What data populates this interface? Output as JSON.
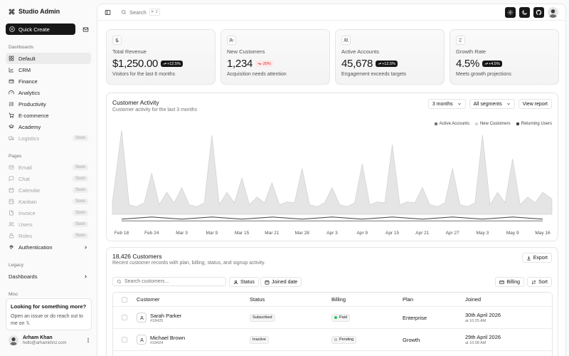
{
  "brand": {
    "name": "Studio Admin"
  },
  "sidebar": {
    "quick_create": "Quick Create",
    "dashboards_label": "Dashboards",
    "dashboards": [
      {
        "label": "Default",
        "icon": "layout-grid-icon",
        "active": true
      },
      {
        "label": "CRM",
        "icon": "chart-icon"
      },
      {
        "label": "Finance",
        "icon": "wallet-icon"
      },
      {
        "label": "Analytics",
        "icon": "gauge-icon"
      },
      {
        "label": "Productivity",
        "icon": "list-check-icon"
      },
      {
        "label": "E-commerce",
        "icon": "cart-icon"
      },
      {
        "label": "Academy",
        "icon": "graduation-cap-icon"
      },
      {
        "label": "Logistics",
        "icon": "truck-icon",
        "badge": "Soon"
      }
    ],
    "pages_label": "Pages",
    "pages": [
      {
        "label": "Email",
        "icon": "mail-icon",
        "badge": "Soon"
      },
      {
        "label": "Chat",
        "icon": "message-icon",
        "badge": "Soon"
      },
      {
        "label": "Calendar",
        "icon": "calendar-icon",
        "badge": "Soon"
      },
      {
        "label": "Kanban",
        "icon": "kanban-icon",
        "badge": "Soon"
      },
      {
        "label": "Invoice",
        "icon": "file-icon",
        "badge": "Soon"
      },
      {
        "label": "Users",
        "icon": "users-icon",
        "badge": "Soon"
      },
      {
        "label": "Roles",
        "icon": "lock-icon",
        "badge": "Soon"
      },
      {
        "label": "Authentication",
        "icon": "fingerprint-icon",
        "chevron": true
      }
    ],
    "legacy_label": "Legacy",
    "legacy": [
      {
        "label": "Dashboards",
        "chevron": true
      }
    ],
    "misc_label": "Misc",
    "promo": {
      "title": "Looking for something more?",
      "text": "Open an issue or do reach out to me on 𝕏"
    },
    "user": {
      "name": "Arham Khan",
      "email": "hello@arhamkhnz.com"
    }
  },
  "topbar": {
    "search_label": "Search",
    "shortcut": "⌘ J"
  },
  "stats": [
    {
      "icon": "dollar-icon",
      "title": "Total Revenue",
      "value": "$1,250.00",
      "change": "+12.5%",
      "trend": "up",
      "sub": "Visitors for the last 6 months"
    },
    {
      "icon": "user-plus-icon",
      "title": "New Customers",
      "value": "1,234",
      "change": "-20%",
      "trend": "down",
      "sub": "Acquisition needs attention"
    },
    {
      "icon": "users-icon",
      "title": "Active Accounts",
      "value": "45,678",
      "change": "+12.5%",
      "trend": "up",
      "sub": "Engagement exceeds targets"
    },
    {
      "icon": "chart-line-icon",
      "title": "Growth Rate",
      "value": "4.5%",
      "change": "+4.5%",
      "trend": "up",
      "sub": "Meets growth projections"
    }
  ],
  "activity": {
    "title": "Customer Activity",
    "subtitle": "Customer activity for the last 3 months",
    "range": "3 months",
    "segment": "All segments",
    "view_report": "View report"
  },
  "chart_data": {
    "type": "area",
    "x": [
      "Feb 18",
      "Feb 24",
      "Mar 3",
      "Mar 9",
      "Mar 15",
      "Mar 21",
      "Mar 28",
      "Apr 3",
      "Apr 9",
      "Apr 15",
      "Apr 21",
      "Apr 27",
      "May 3",
      "May 9",
      "May 16"
    ],
    "series": [
      {
        "name": "Active Accounts",
        "color": "#737373",
        "values": [
          5,
          5,
          5,
          5,
          5,
          5,
          5,
          5,
          5,
          5,
          5,
          5,
          5,
          5,
          5
        ]
      },
      {
        "name": "New Customers",
        "color": "#d4d4d4",
        "values": [
          100,
          55,
          40,
          95,
          50,
          45,
          60,
          40,
          65,
          85,
          40,
          60,
          95,
          70,
          35
        ]
      },
      {
        "name": "Returning Users",
        "color": "#404040",
        "values": [
          8,
          8,
          8,
          8,
          8,
          8,
          8,
          8,
          8,
          8,
          8,
          8,
          8,
          8,
          8
        ]
      }
    ],
    "grid": false
  },
  "customers": {
    "title": "18,426 Customers",
    "subtitle": "Recent customer records with plan, billing, status, and signup activity.",
    "export": "Export",
    "search_placeholder": "Search customers...",
    "filter_status": "Status",
    "filter_joined": "Joined date",
    "billing_btn": "Billing",
    "sort_btn": "Sort",
    "columns": [
      "Customer",
      "Status",
      "Billing",
      "Plan",
      "Joined"
    ],
    "rows": [
      {
        "name": "Sarah Parker",
        "id": "#18425",
        "status": "Subscribed",
        "billing": "Paid",
        "billing_color": "#22c55e",
        "plan": "Enterprise",
        "joined": "30th April 2026",
        "time": "at 10:25 AM"
      },
      {
        "name": "Michael Brown",
        "id": "#18424",
        "status": "Inactive",
        "billing": "Pending",
        "billing_color": "#ffffff",
        "plan": "Growth",
        "joined": "29th April 2026",
        "time": "at 10:08 AM"
      }
    ]
  }
}
